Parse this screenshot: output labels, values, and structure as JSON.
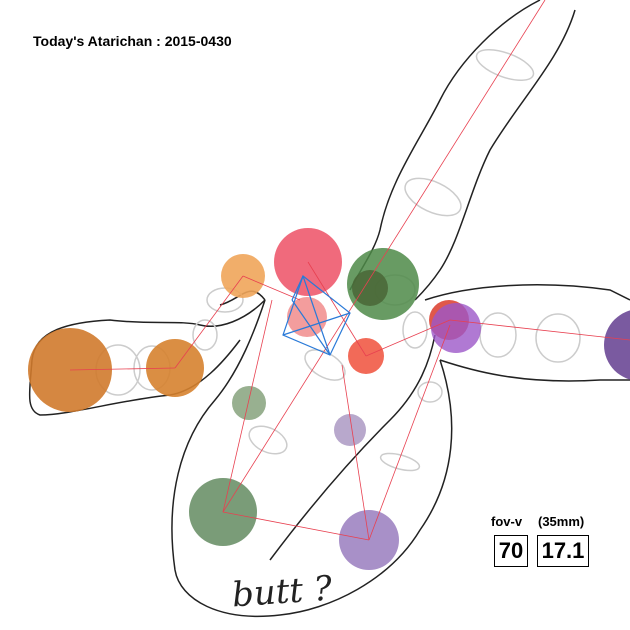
{
  "header": {
    "title": "Today's Atarichan : 2015-0430"
  },
  "camera": {
    "fov_label": "fov-v",
    "lens_label": "(35mm)",
    "fov_value": 70,
    "lens_value": 17.1
  },
  "note": "butt ?"
}
